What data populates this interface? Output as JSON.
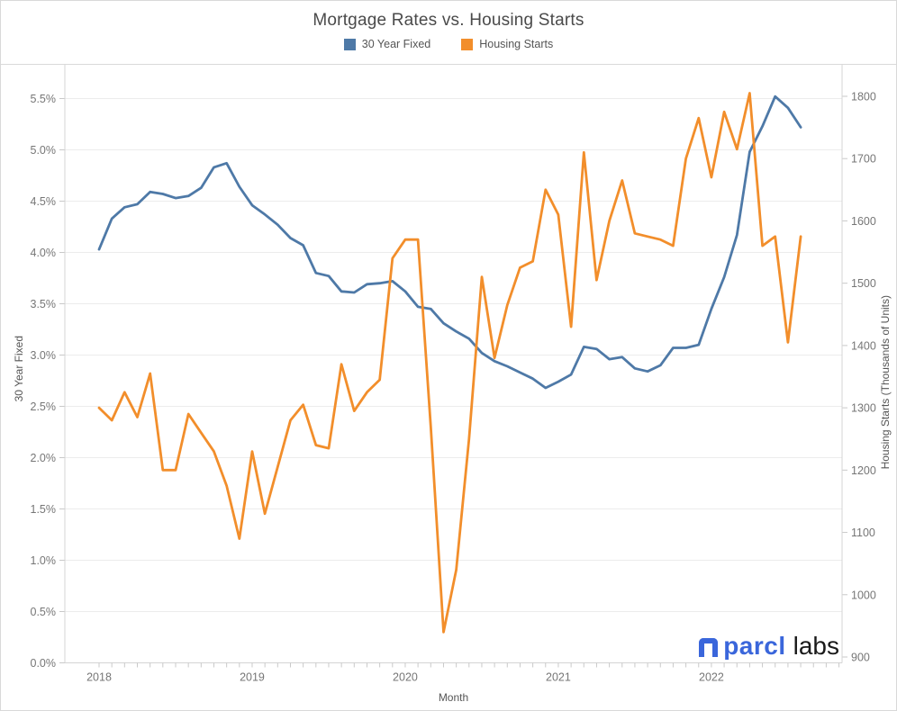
{
  "header": {
    "title": "Mortgage Rates vs. Housing Starts",
    "legend": [
      {
        "label": "30 Year Fixed",
        "color": "#4e79a7"
      },
      {
        "label": "Housing Starts",
        "color": "#f28e2b"
      }
    ]
  },
  "chart_data": {
    "type": "line",
    "title": "Mortgage Rates vs. Housing Starts",
    "xlabel": "Month",
    "x_tick_labels": [
      "2018",
      "2019",
      "2020",
      "2021",
      "2022"
    ],
    "grid": "horizontal",
    "legend_position": "top",
    "x": [
      "2018-01",
      "2018-02",
      "2018-03",
      "2018-04",
      "2018-05",
      "2018-06",
      "2018-07",
      "2018-08",
      "2018-09",
      "2018-10",
      "2018-11",
      "2018-12",
      "2019-01",
      "2019-02",
      "2019-03",
      "2019-04",
      "2019-05",
      "2019-06",
      "2019-07",
      "2019-08",
      "2019-09",
      "2019-10",
      "2019-11",
      "2019-12",
      "2020-01",
      "2020-02",
      "2020-03",
      "2020-04",
      "2020-05",
      "2020-06",
      "2020-07",
      "2020-08",
      "2020-09",
      "2020-10",
      "2020-11",
      "2020-12",
      "2021-01",
      "2021-02",
      "2021-03",
      "2021-04",
      "2021-05",
      "2021-06",
      "2021-07",
      "2021-08",
      "2021-09",
      "2021-10",
      "2021-11",
      "2021-12",
      "2022-01",
      "2022-02",
      "2022-03",
      "2022-04",
      "2022-05",
      "2022-06",
      "2022-07",
      "2022-08"
    ],
    "y_left": {
      "label": "30 Year Fixed",
      "unit": "percent",
      "range": [
        0.0,
        5.5
      ],
      "tick_step": 0.5,
      "tick_labels": [
        "0.0%",
        "0.5%",
        "1.0%",
        "1.5%",
        "2.0%",
        "2.5%",
        "3.0%",
        "3.5%",
        "4.0%",
        "4.5%",
        "5.0%",
        "5.5%"
      ]
    },
    "y_right": {
      "label": "Housing Starts (Thousands of Units)",
      "range": [
        900,
        1800
      ],
      "tick_step": 100,
      "tick_labels": [
        "900",
        "1000",
        "1100",
        "1200",
        "1300",
        "1400",
        "1500",
        "1600",
        "1700",
        "1800"
      ]
    },
    "series": [
      {
        "name": "30 Year Fixed",
        "axis": "left",
        "color": "#4e79a7",
        "values": [
          4.03,
          4.33,
          4.44,
          4.47,
          4.59,
          4.57,
          4.53,
          4.55,
          4.63,
          4.83,
          4.87,
          4.64,
          4.46,
          4.37,
          4.27,
          4.14,
          4.07,
          3.8,
          3.77,
          3.62,
          3.61,
          3.69,
          3.7,
          3.72,
          3.62,
          3.47,
          3.45,
          3.31,
          3.23,
          3.16,
          3.02,
          2.94,
          2.89,
          2.83,
          2.77,
          2.68,
          2.74,
          2.81,
          3.08,
          3.06,
          2.96,
          2.98,
          2.87,
          2.84,
          2.9,
          3.07,
          3.07,
          3.1,
          3.45,
          3.76,
          4.17,
          4.98,
          5.23,
          5.52,
          5.41,
          5.22
        ]
      },
      {
        "name": "Housing Starts",
        "axis": "right",
        "color": "#f28e2b",
        "values": [
          1300,
          1280,
          1325,
          1285,
          1355,
          1200,
          1200,
          1290,
          1260,
          1230,
          1175,
          1090,
          1230,
          1130,
          1205,
          1280,
          1305,
          1240,
          1235,
          1370,
          1295,
          1325,
          1345,
          1540,
          1570,
          1570,
          1270,
          940,
          1040,
          1250,
          1510,
          1380,
          1465,
          1525,
          1535,
          1650,
          1610,
          1430,
          1710,
          1505,
          1600,
          1665,
          1580,
          1575,
          1570,
          1560,
          1700,
          1765,
          1670,
          1775,
          1715,
          1805,
          1560,
          1575,
          1405,
          1575
        ]
      }
    ]
  },
  "logo": {
    "name": "parcl",
    "suffix": "labs"
  }
}
